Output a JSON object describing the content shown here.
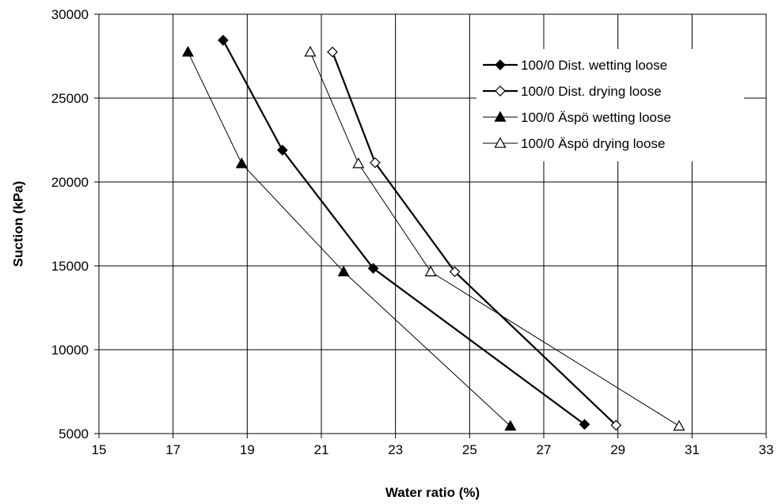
{
  "chart_data": {
    "type": "line",
    "title": "",
    "xlabel": "Water ratio (%)",
    "ylabel": "Suction (kPa)",
    "xlim": [
      15,
      33
    ],
    "ylim": [
      5000,
      30000
    ],
    "x_ticks": [
      15,
      17,
      19,
      21,
      23,
      25,
      27,
      29,
      31,
      33
    ],
    "x_tick_labels": [
      "15",
      "17",
      "19",
      "21",
      "23",
      "25",
      "27",
      "29",
      "31",
      "33"
    ],
    "y_ticks": [
      5000,
      10000,
      15000,
      20000,
      25000,
      30000
    ],
    "y_tick_labels": [
      "5000",
      "10000",
      "15000",
      "20000",
      "25000",
      "30000"
    ],
    "grid": true,
    "legend_position": "top-right",
    "series": [
      {
        "name": "100/0 Dist. wetting loose",
        "marker": "diamond-filled",
        "line_weight": "thick",
        "color": "#000000",
        "points": [
          [
            18.35,
            28450
          ],
          [
            19.95,
            21900
          ],
          [
            22.4,
            14850
          ],
          [
            28.1,
            5550
          ]
        ]
      },
      {
        "name": "100/0 Dist. drying loose",
        "marker": "diamond-open",
        "line_weight": "thick",
        "color": "#000000",
        "points": [
          [
            21.3,
            27750
          ],
          [
            22.45,
            21150
          ],
          [
            24.6,
            14650
          ],
          [
            28.95,
            5500
          ]
        ]
      },
      {
        "name": "100/0 Äspö wetting loose",
        "marker": "triangle-filled",
        "line_weight": "thin",
        "color": "#000000",
        "points": [
          [
            17.4,
            27750
          ],
          [
            18.85,
            21100
          ],
          [
            21.6,
            14650
          ],
          [
            26.1,
            5450
          ]
        ]
      },
      {
        "name": "100/0 Äspö drying loose",
        "marker": "triangle-open",
        "line_weight": "thin",
        "color": "#000000",
        "points": [
          [
            20.7,
            27750
          ],
          [
            22.0,
            21100
          ],
          [
            23.95,
            14650
          ],
          [
            30.65,
            5450
          ]
        ]
      }
    ]
  }
}
